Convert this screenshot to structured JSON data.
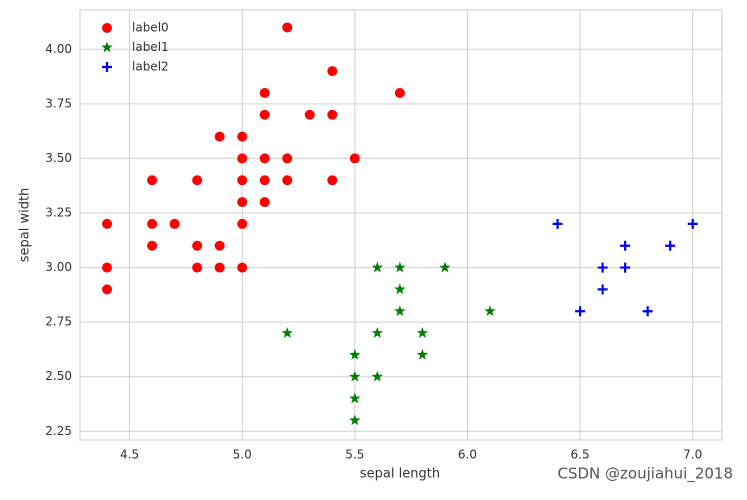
{
  "chart_data": {
    "type": "scatter",
    "xlabel": "sepal length",
    "ylabel": "sepal width",
    "xlim": [
      4.28,
      7.13
    ],
    "ylim": [
      2.21,
      4.18
    ],
    "xticks": [
      4.5,
      {
        "value": 5.0,
        "label": "5.0"
      },
      5.5,
      {
        "value": 6.0,
        "label": "6.0"
      },
      6.5,
      {
        "value": 7.0,
        "label": "7.0"
      }
    ],
    "yticks": [
      {
        "value": 2.25,
        "label": "2.25"
      },
      {
        "value": 2.5,
        "label": "2.50"
      },
      {
        "value": 2.75,
        "label": "2.75"
      },
      {
        "value": 3.0,
        "label": "3.00"
      },
      {
        "value": 3.25,
        "label": "3.25"
      },
      {
        "value": 3.5,
        "label": "3.50"
      },
      {
        "value": 3.75,
        "label": "3.75"
      },
      {
        "value": 4.0,
        "label": "4.00"
      }
    ],
    "grid": true,
    "legend": "upper left",
    "series": [
      {
        "name": "label0",
        "color": "#ff0000",
        "marker": "o",
        "x": [
          5.2,
          5.4,
          5.1,
          5.7,
          5.1,
          5.3,
          5.4,
          4.9,
          5.0,
          5.0,
          5.1,
          5.2,
          5.5,
          4.6,
          4.8,
          5.0,
          5.1,
          5.2,
          5.4,
          5.0,
          5.1,
          4.4,
          4.6,
          4.7,
          5.0,
          4.6,
          4.8,
          4.9,
          4.4,
          4.8,
          4.9,
          5.0,
          4.4
        ],
        "values": [
          4.1,
          3.9,
          3.8,
          3.8,
          3.7,
          3.7,
          3.7,
          3.6,
          3.6,
          3.5,
          3.5,
          3.5,
          3.5,
          3.4,
          3.4,
          3.4,
          3.4,
          3.4,
          3.4,
          3.3,
          3.3,
          3.2,
          3.2,
          3.2,
          3.2,
          3.1,
          3.1,
          3.1,
          3.0,
          3.0,
          3.0,
          3.0,
          2.9
        ]
      },
      {
        "name": "label1",
        "color": "#008000",
        "marker": "*",
        "x": [
          5.2,
          5.5,
          5.5,
          5.5,
          5.5,
          5.6,
          5.6,
          5.6,
          5.7,
          5.7,
          5.7,
          5.8,
          5.8,
          5.9,
          6.1
        ],
        "values": [
          2.7,
          2.6,
          2.5,
          2.4,
          2.3,
          3.0,
          2.7,
          2.5,
          3.0,
          2.9,
          2.8,
          2.7,
          2.6,
          3.0,
          2.8
        ]
      },
      {
        "name": "label2",
        "color": "#0000ff",
        "marker": "+",
        "x": [
          6.4,
          6.5,
          6.6,
          6.6,
          6.7,
          6.7,
          6.8,
          6.9,
          7.0
        ],
        "values": [
          3.2,
          2.8,
          3.0,
          2.9,
          3.1,
          3.0,
          2.8,
          3.1,
          3.2
        ]
      }
    ]
  },
  "watermark": "CSDN @zoujiahui_2018"
}
